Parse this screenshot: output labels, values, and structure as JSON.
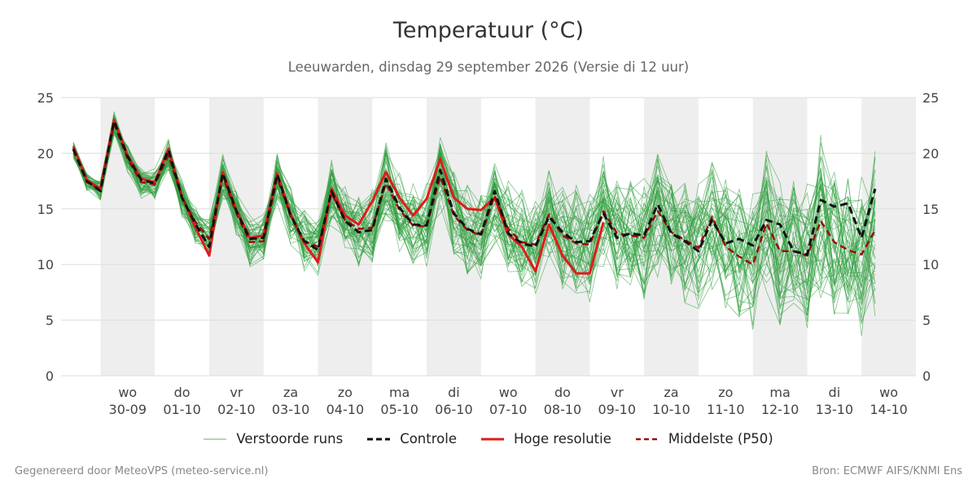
{
  "header": {
    "title": "Temperatuur (°C)",
    "subtitle": "Leeuwarden, dinsdag 29 september 2026 (Versie di 12 uur)"
  },
  "footer": {
    "left": "Gegenereerd door MeteoVPS (meteo-service.nl)",
    "right": "Bron: ECMWF AIFS/KNMI Ens"
  },
  "legend": [
    {
      "label": "Verstoorde runs",
      "color": "#3a9d3a",
      "style": "thin"
    },
    {
      "label": "Controle",
      "color": "#111111",
      "style": "dashed"
    },
    {
      "label": "Hoge resolutie",
      "color": "#e01b1b",
      "style": "solid"
    },
    {
      "label": "Middelste (P50)",
      "color": "#9b0d0d",
      "style": "dashed"
    }
  ],
  "colors": {
    "weekend_band": "#eeeeee",
    "grid": "#dddddd",
    "members": "#2e9e3e",
    "control": "#111111",
    "hires": "#e01b1b",
    "median": "#9b0d0d"
  },
  "chart_data": {
    "type": "line",
    "x_unit": "6-hour steps from 30-09 00:00",
    "ylim": [
      0,
      25
    ],
    "yticks": [
      0,
      5,
      10,
      15,
      20,
      25
    ],
    "xticks": [
      {
        "day": "wo",
        "date": "30-09",
        "step": 4
      },
      {
        "day": "do",
        "date": "01-10",
        "step": 8
      },
      {
        "day": "vr",
        "date": "02-10",
        "step": 12
      },
      {
        "day": "za",
        "date": "03-10",
        "step": 16
      },
      {
        "day": "zo",
        "date": "04-10",
        "step": 20
      },
      {
        "day": "ma",
        "date": "05-10",
        "step": 24
      },
      {
        "day": "di",
        "date": "06-10",
        "step": 28
      },
      {
        "day": "wo",
        "date": "07-10",
        "step": 32
      },
      {
        "day": "do",
        "date": "08-10",
        "step": 36
      },
      {
        "day": "vr",
        "date": "09-10",
        "step": 40
      },
      {
        "day": "za",
        "date": "10-10",
        "step": 44
      },
      {
        "day": "zo",
        "date": "11-10",
        "step": 48
      },
      {
        "day": "ma",
        "date": "12-10",
        "step": 52
      },
      {
        "day": "di",
        "date": "13-10",
        "step": 56
      },
      {
        "day": "wo",
        "date": "14-10",
        "step": 60
      }
    ],
    "shaded_bands": [
      [
        2,
        6
      ],
      [
        10,
        14
      ],
      [
        18,
        22
      ],
      [
        26,
        30
      ],
      [
        34,
        38
      ],
      [
        42,
        46
      ],
      [
        50,
        54
      ],
      [
        58,
        62
      ]
    ],
    "x_range": [
      -0.9,
      62
    ],
    "series": [
      {
        "name": "Controle",
        "style": "control",
        "values": [
          20.4,
          17.5,
          16.6,
          22.9,
          19.7,
          17.6,
          17.3,
          20.3,
          16.0,
          13.6,
          11.6,
          18.2,
          14.8,
          12.3,
          12.4,
          18.1,
          14.4,
          12.1,
          11.3,
          16.6,
          13.9,
          12.9,
          13.1,
          17.7,
          15.1,
          13.6,
          13.5,
          18.5,
          14.6,
          13.2,
          12.7,
          16.6,
          12.8,
          11.9,
          11.6,
          14.3,
          12.9,
          12.0,
          12.1,
          14.6,
          12.4,
          12.8,
          12.6,
          15.4,
          12.8,
          12.1,
          11.2,
          14.0,
          11.9,
          12.3,
          11.7,
          14.0,
          13.6,
          11.2,
          10.9,
          15.8,
          15.2,
          15.5,
          12.4,
          16.8
        ]
      },
      {
        "name": "Hoge resolutie",
        "style": "hires",
        "values": [
          20.6,
          17.6,
          16.8,
          23.0,
          19.8,
          17.7,
          17.4,
          20.4,
          16.1,
          13.3,
          10.8,
          18.3,
          14.9,
          12.4,
          12.6,
          18.2,
          14.5,
          11.9,
          10.2,
          16.8,
          14.4,
          13.6,
          15.7,
          18.3,
          16.0,
          14.4,
          15.9,
          19.5,
          16.0,
          15.0,
          14.9,
          16.0,
          12.7,
          11.6,
          9.4,
          13.6,
          10.8,
          9.2,
          9.2,
          13.8,
          null,
          null,
          null,
          null,
          null,
          null,
          null,
          null,
          null,
          null,
          null,
          null,
          null,
          null,
          null,
          null,
          null,
          null,
          null,
          null
        ]
      },
      {
        "name": "Middelste (P50)",
        "style": "median",
        "values": [
          20.3,
          17.4,
          16.7,
          22.6,
          19.5,
          17.4,
          17.2,
          19.8,
          16.0,
          13.8,
          12.3,
          17.9,
          14.6,
          12.0,
          12.1,
          17.8,
          14.3,
          12.1,
          11.6,
          16.4,
          14.0,
          13.2,
          13.3,
          17.3,
          14.9,
          13.5,
          13.4,
          17.9,
          14.4,
          13.1,
          12.6,
          16.2,
          13.2,
          12.0,
          11.8,
          14.5,
          12.6,
          11.9,
          11.8,
          14.8,
          12.8,
          12.6,
          12.4,
          14.8,
          12.9,
          12.2,
          11.5,
          14.3,
          11.6,
          10.7,
          10.0,
          13.7,
          11.2,
          11.2,
          10.8,
          13.9,
          12.0,
          11.3,
          10.9,
          13.1
        ]
      }
    ]
  }
}
